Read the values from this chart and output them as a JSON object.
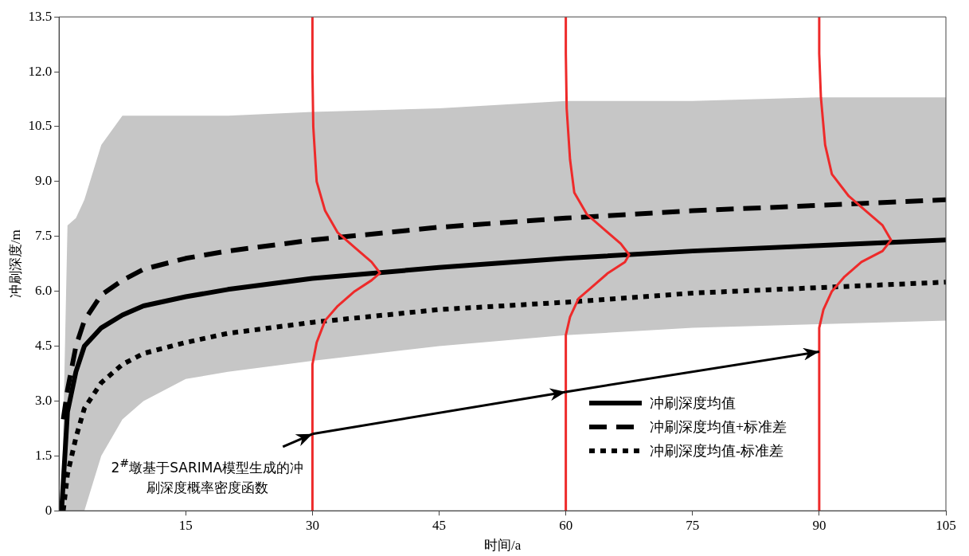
{
  "chart_data": {
    "type": "line",
    "xlabel": "时间/a",
    "ylabel": "冲刷深度/m",
    "xlim": [
      0,
      105
    ],
    "xticks": [
      15,
      30,
      45,
      60,
      75,
      90,
      105
    ],
    "ylim": [
      0,
      13.5
    ],
    "yticks": [
      0,
      {
        "value": 1.5,
        "label": "1.5"
      },
      {
        "value": 3,
        "label": "3.0"
      },
      {
        "value": 4.5,
        "label": "4.5"
      },
      {
        "value": 6,
        "label": "6.0"
      },
      {
        "value": 7.5,
        "label": "7.5"
      },
      {
        "value": 9,
        "label": "9.0"
      },
      {
        "value": 10.5,
        "label": "10.5"
      },
      {
        "value": 12,
        "label": "12.0"
      },
      {
        "value": 13.5,
        "label": "13.5"
      }
    ],
    "grid": false,
    "legend": "bottom right",
    "marker": "none",
    "annotations": [
      {
        "text": "2$^{#}$墩基于SARIMA模型生成的冲刷深度概率密度函数",
        "x": 30,
        "y": 2.1
      }
    ],
    "series": [
      {
        "name": "冲刷深度均值",
        "color": "#000000",
        "line_style": "solid",
        "x": [
          0.3,
          1,
          2,
          3,
          5,
          7.5,
          10,
          15,
          20,
          30,
          45,
          60,
          75,
          90,
          105
        ],
        "values": [
          0,
          2.7,
          3.8,
          4.5,
          5.0,
          5.35,
          5.6,
          5.85,
          6.05,
          6.35,
          6.65,
          6.9,
          7.1,
          7.25,
          7.4
        ],
        "lower": [
          0,
          0,
          0,
          0,
          1.5,
          2.5,
          3.0,
          3.6,
          3.8,
          4.1,
          4.5,
          4.8,
          5.0,
          5.1,
          5.2
        ],
        "upper": [
          0,
          7.8,
          8.0,
          8.5,
          10.0,
          10.8,
          10.8,
          10.8,
          10.8,
          10.9,
          11.0,
          11.2,
          11.2,
          11.3,
          11.3
        ]
      },
      {
        "name": "冲刷深度均值+标准差",
        "color": "#000000",
        "line_style": "dashed",
        "x": [
          0.5,
          1,
          2,
          3,
          5,
          7.5,
          10,
          15,
          20,
          30,
          45,
          60,
          75,
          90,
          105
        ],
        "values": [
          2.5,
          3.3,
          4.5,
          5.2,
          5.9,
          6.3,
          6.6,
          6.9,
          7.1,
          7.4,
          7.75,
          8.0,
          8.2,
          8.35,
          8.5
        ]
      },
      {
        "name": "冲刷深度均值-标准差",
        "color": "#000000",
        "line_style": "dotted",
        "x": [
          0.5,
          1,
          2,
          3,
          5,
          7.5,
          10,
          15,
          20,
          30,
          45,
          60,
          75,
          90,
          105
        ],
        "values": [
          0,
          1.0,
          2.0,
          2.8,
          3.5,
          4.0,
          4.3,
          4.6,
          4.85,
          5.15,
          5.5,
          5.7,
          5.95,
          6.1,
          6.25
        ]
      },
      {
        "color": "#ee2a2a",
        "line_style": "solid",
        "x": [
          30,
          30,
          30.5,
          31.5,
          33,
          35,
          37,
          38,
          37,
          35,
          33,
          31.5,
          30.5,
          30.1,
          30,
          30
        ],
        "values": [
          0,
          4.0,
          4.6,
          5.2,
          5.6,
          6.0,
          6.3,
          6.5,
          6.8,
          7.2,
          7.6,
          8.2,
          9.0,
          10.5,
          12,
          13.5
        ]
      },
      {
        "color": "#ee2a2a",
        "line_style": "solid",
        "x": [
          60,
          60,
          60.5,
          61.5,
          63,
          65,
          67,
          67.5,
          66.5,
          64.5,
          62.5,
          61,
          60.5,
          60.1,
          60,
          60
        ],
        "values": [
          0,
          4.8,
          5.3,
          5.8,
          6.1,
          6.5,
          6.8,
          7.0,
          7.3,
          7.7,
          8.1,
          8.7,
          9.6,
          11,
          12.5,
          13.5
        ]
      },
      {
        "color": "#ee2a2a",
        "line_style": "solid",
        "x": [
          90,
          90,
          90.5,
          91.5,
          93,
          95,
          97.5,
          98.5,
          97.5,
          95.5,
          93.5,
          91.5,
          90.7,
          90.2,
          90,
          90
        ],
        "values": [
          0,
          5.0,
          5.5,
          6.0,
          6.4,
          6.8,
          7.1,
          7.4,
          7.8,
          8.2,
          8.6,
          9.2,
          10,
          11.3,
          12.5,
          13.5
        ]
      }
    ]
  }
}
